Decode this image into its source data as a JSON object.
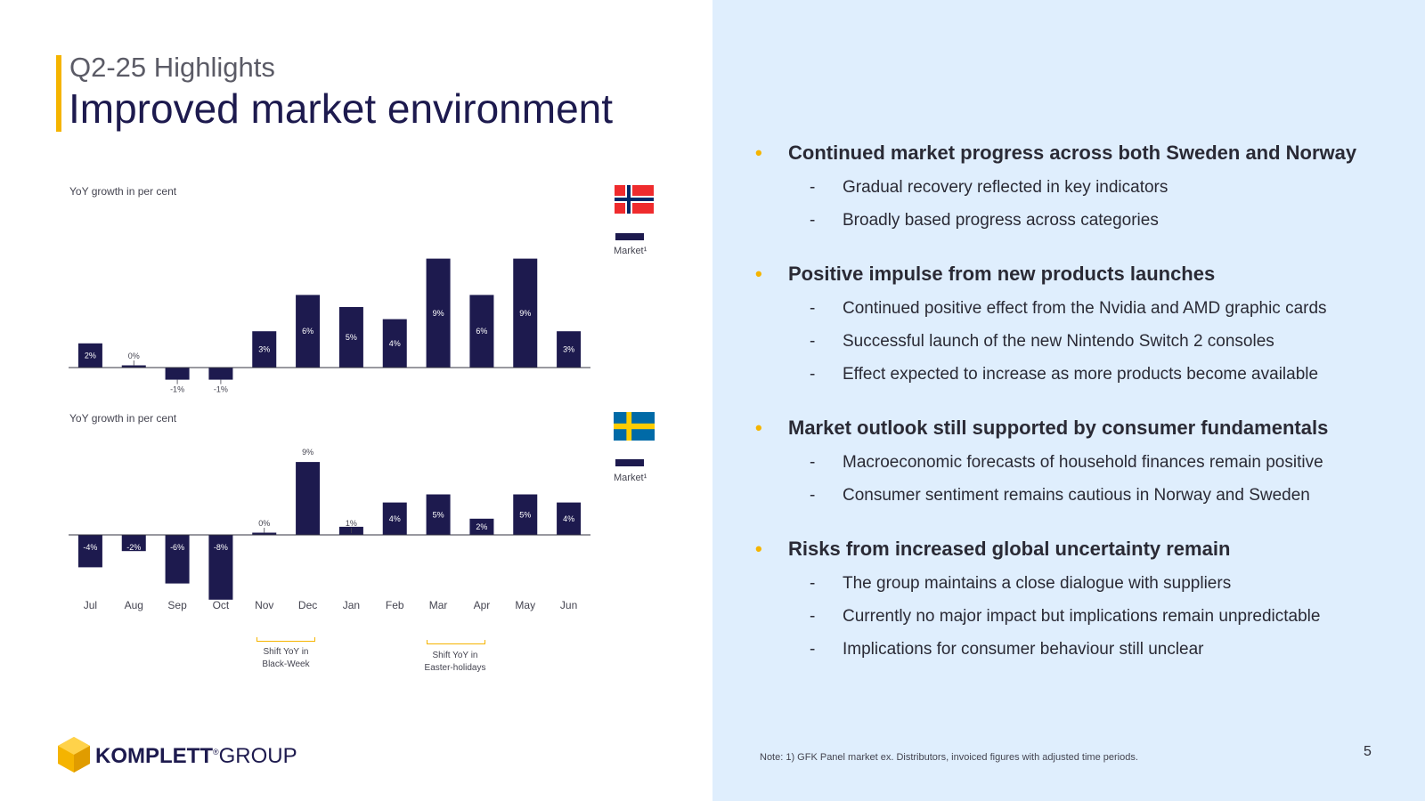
{
  "header": {
    "subtitle": "Q2-25 Highlights",
    "title": "Improved market environment"
  },
  "colors": {
    "bar": "#1d1a4e",
    "accent": "#f5b400",
    "right_panel": "#dfeefd"
  },
  "charts": {
    "norway": {
      "caption": "YoY growth in per cent",
      "legend": "Market¹",
      "flag": "norway-flag-icon"
    },
    "sweden": {
      "caption": "YoY growth in per cent",
      "legend": "Market¹",
      "flag": "sweden-flag-icon"
    },
    "annotations": [
      {
        "text_line1": "Shift YoY in",
        "text_line2": "Black-Week"
      },
      {
        "text_line1": "Shift YoY in",
        "text_line2": "Easter-holidays"
      }
    ]
  },
  "chart_data": [
    {
      "type": "bar",
      "title": "",
      "ylabel": "YoY growth in per cent",
      "categories": [
        "Jul",
        "Aug",
        "Sep",
        "Oct",
        "Nov",
        "Dec",
        "Jan",
        "Feb",
        "Mar",
        "Apr",
        "May",
        "Jun"
      ],
      "series": [
        {
          "name": "Market¹",
          "values": [
            2,
            0,
            -1,
            -1,
            3,
            6,
            5,
            4,
            9,
            6,
            9,
            3
          ]
        }
      ],
      "value_labels": [
        "2%",
        "0%",
        "-1%",
        "-1%",
        "3%",
        "6%",
        "5%",
        "4%",
        "9%",
        "6%",
        "9%",
        "3%"
      ],
      "grid": false,
      "legend_position": "right"
    },
    {
      "type": "bar",
      "title": "",
      "ylabel": "YoY growth in per cent",
      "categories": [
        "Jul",
        "Aug",
        "Sep",
        "Oct",
        "Nov",
        "Dec",
        "Jan",
        "Feb",
        "Mar",
        "Apr",
        "May",
        "Jun"
      ],
      "series": [
        {
          "name": "Market¹",
          "values": [
            -4,
            -2,
            -6,
            -8,
            0,
            9,
            1,
            4,
            5,
            2,
            5,
            4
          ]
        }
      ],
      "value_labels": [
        "-4%",
        "-2%",
        "-6%",
        "-8%",
        "0%",
        "9%",
        "1%",
        "4%",
        "5%",
        "2%",
        "5%",
        "4%"
      ],
      "grid": false,
      "legend_position": "right"
    }
  ],
  "bullets": [
    {
      "heading": "Continued market progress across both Sweden and Norway",
      "items": [
        "Gradual recovery reflected in key indicators",
        "Broadly based progress across categories"
      ]
    },
    {
      "heading": "Positive impulse from new products launches",
      "items": [
        "Continued positive effect from the Nvidia and AMD graphic cards",
        "Successful launch of the new Nintendo Switch 2 consoles",
        "Effect expected to increase as more products become available"
      ]
    },
    {
      "heading": "Market outlook still supported by consumer fundamentals",
      "items": [
        "Macroeconomic forecasts of household finances remain positive",
        "Consumer sentiment remains cautious in Norway and Sweden"
      ]
    },
    {
      "heading": "Risks from increased global uncertainty remain",
      "items": [
        "The group maintains a close dialogue with suppliers",
        "Currently no major impact but implications remain unpredictable",
        "Implications for consumer behaviour still unclear"
      ]
    }
  ],
  "footer": {
    "note": "Note: 1) GFK Panel market ex. Distributors, invoiced figures with adjusted time periods.",
    "page_number": "5",
    "logo_bold": "KOMPLETT",
    "logo_mark": "®",
    "logo_light": "GROUP",
    "logo_icon": "komplett-logo-icon"
  }
}
